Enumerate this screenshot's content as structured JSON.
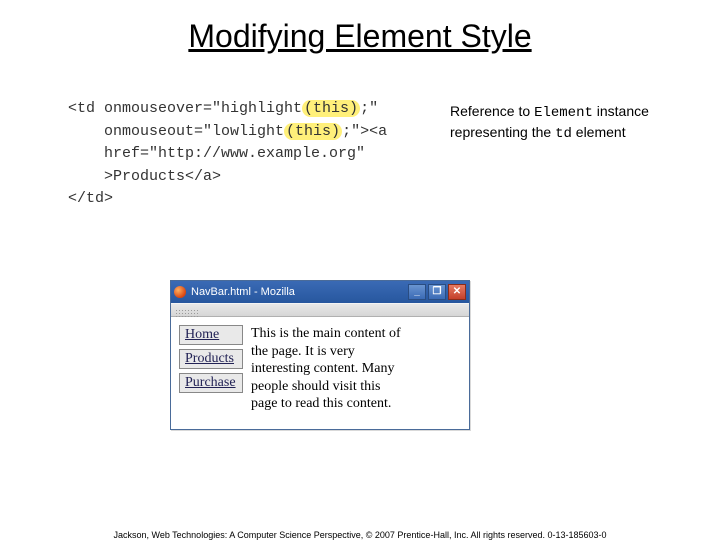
{
  "title": "Modifying Element Style",
  "code": {
    "line1_a": "<td onmouseover=\"highlight",
    "line1_hl": "(this)",
    "line1_b": ";\"",
    "line2_a": "    onmouseout=\"lowlight",
    "line2_hl": "(this)",
    "line2_b": ";\"><a",
    "line3": "    href=\"http://www.example.org\"",
    "line4": "    >Products</a>",
    "line5": "</td>"
  },
  "annotation": {
    "t1": "Reference to ",
    "kw1": "Element",
    "t2": " instance representing the ",
    "kw2": "td",
    "t3": " element"
  },
  "browser": {
    "title": "NavBar.html - Mozilla",
    "minimize": "_",
    "maximize": "❐",
    "close": "✕",
    "nav": [
      "Home",
      "Products",
      "Purchase"
    ],
    "main_text": "This is the main content of the page. It is very interesting content. Many people should visit this page to read this content."
  },
  "footer": "Jackson, Web Technologies: A Computer Science Perspective, © 2007 Prentice-Hall, Inc. All rights reserved. 0-13-185603-0",
  "colors": {
    "highlight": "#fff07a",
    "titlebar_from": "#3a6ab5",
    "titlebar_to": "#27579e",
    "close_from": "#e67b63",
    "close_to": "#c4402a",
    "nav_cell_bg": "#e9e9e9"
  }
}
